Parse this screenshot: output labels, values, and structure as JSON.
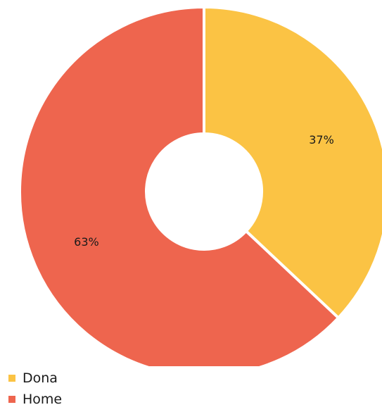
{
  "chart_data": {
    "type": "pie",
    "donut": true,
    "categories": [
      "Dona",
      "Home"
    ],
    "values": [
      37,
      63
    ],
    "data_labels": [
      "37%",
      "63%"
    ],
    "colors": [
      "#fbc344",
      "#ee654e"
    ],
    "legend_position": "bottom-left"
  },
  "legend": {
    "items": [
      {
        "label": "Dona",
        "color": "#fbc344"
      },
      {
        "label": "Home",
        "color": "#ee654e"
      }
    ]
  }
}
